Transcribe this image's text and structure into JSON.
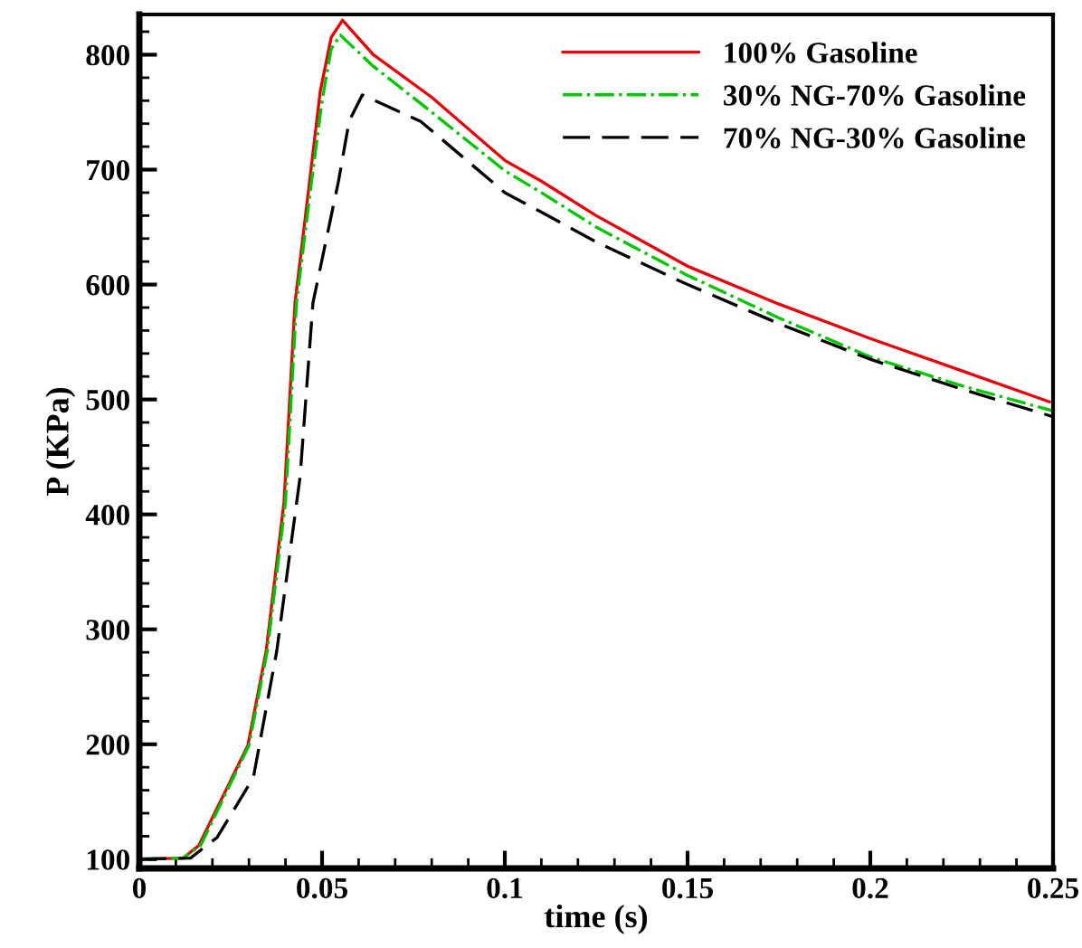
{
  "chart_data": {
    "type": "line",
    "xlabel": "time (s)",
    "ylabel": "P (KPa)",
    "xlim": [
      0,
      0.25
    ],
    "ylim": [
      92,
      835
    ],
    "xticks": [
      0,
      0.05,
      0.1,
      0.15,
      0.2,
      0.25
    ],
    "yticks": [
      100,
      200,
      300,
      400,
      500,
      600,
      700,
      800
    ],
    "legend": "top right",
    "grid": false,
    "marker": "none",
    "series": [
      {
        "name": "100% Gasoline",
        "color": "#e8000b",
        "line_style": "solid",
        "x": [
          0,
          0.012,
          0.0163,
          0.0297,
          0.0347,
          0.0396,
          0.0426,
          0.046,
          0.0495,
          0.0525,
          0.0556,
          0.064,
          0.08,
          0.1,
          0.11,
          0.125,
          0.15,
          0.175,
          0.2,
          0.225,
          0.249
        ],
        "values": [
          100,
          101,
          112,
          199,
          281,
          411,
          584,
          674,
          768,
          815,
          830,
          800,
          763,
          708,
          690,
          660,
          616,
          583,
          553,
          525,
          498
        ]
      },
      {
        "name": "30% NG-70% Gasoline",
        "color": "#00c800",
        "line_style": "dashdot",
        "x": [
          0,
          0.012,
          0.0168,
          0.03,
          0.035,
          0.04,
          0.043,
          0.0465,
          0.05,
          0.0525,
          0.055,
          0.064,
          0.08,
          0.1,
          0.11,
          0.125,
          0.15,
          0.175,
          0.2,
          0.225,
          0.25
        ],
        "values": [
          100,
          101,
          112,
          199,
          281,
          411,
          584,
          674,
          760,
          805,
          817,
          790,
          750,
          699,
          680,
          650,
          608,
          571,
          537,
          512,
          490
        ]
      },
      {
        "name": "70% NG-30% Gasoline",
        "color": "#000000",
        "line_style": "dashed",
        "x": [
          0,
          0.014,
          0.0213,
          0.0312,
          0.0376,
          0.044,
          0.0475,
          0.0545,
          0.0574,
          0.061,
          0.077,
          0.1,
          0.11,
          0.125,
          0.15,
          0.175,
          0.2,
          0.225,
          0.25
        ],
        "values": [
          100,
          101,
          119,
          171,
          281,
          433,
          584,
          690,
          742,
          765,
          742,
          680,
          663,
          637,
          600,
          566,
          535,
          509,
          485
        ]
      }
    ]
  }
}
